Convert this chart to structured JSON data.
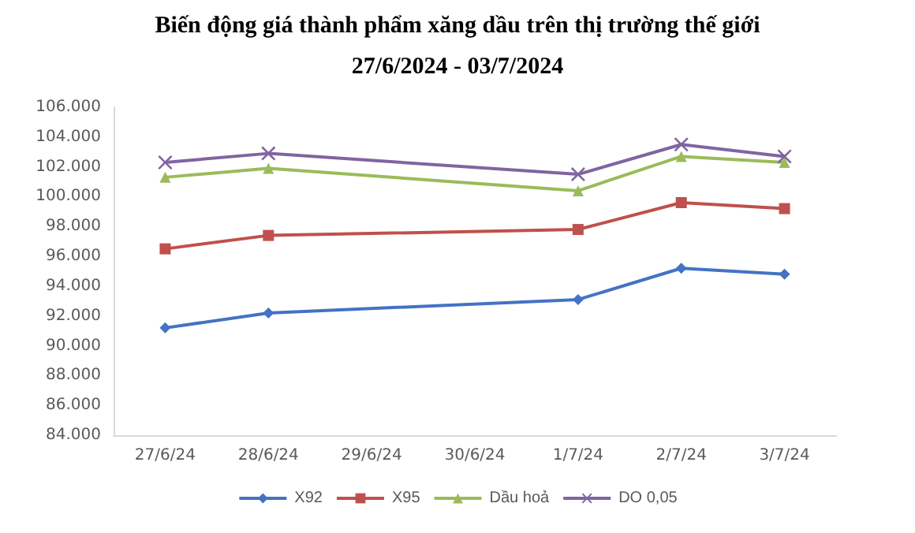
{
  "chart_data": {
    "type": "line",
    "title": "Biến động giá thành phẩm xăng dầu trên thị trường thế giới",
    "subtitle": "27/6/2024 - 03/7/2024",
    "categories": [
      "27/6/24",
      "28/6/24",
      "29/6/24",
      "30/6/24",
      "1/7/24",
      "2/7/24",
      "3/7/24"
    ],
    "series": [
      {
        "name": "X92",
        "color": "#4472c4",
        "marker": "diamond",
        "values": [
          91200,
          92200,
          null,
          null,
          93100,
          95200,
          94800
        ]
      },
      {
        "name": "X95",
        "color": "#c0504d",
        "marker": "square",
        "values": [
          96500,
          97400,
          null,
          null,
          97800,
          99600,
          99200
        ]
      },
      {
        "name": "Dầu hoả",
        "color": "#9bbb59",
        "marker": "triangle",
        "values": [
          101300,
          101900,
          null,
          null,
          100400,
          102700,
          102300
        ]
      },
      {
        "name": "DO 0,05",
        "color": "#8064a2",
        "marker": "cross",
        "values": [
          102300,
          102900,
          null,
          null,
          101500,
          103500,
          102700
        ]
      }
    ],
    "ylim": [
      84000,
      106000
    ],
    "yticks": [
      {
        "value": 84000,
        "label": "84.000"
      },
      {
        "value": 86000,
        "label": "86.000"
      },
      {
        "value": 88000,
        "label": "88.000"
      },
      {
        "value": 90000,
        "label": "90.000"
      },
      {
        "value": 92000,
        "label": "92.000"
      },
      {
        "value": 94000,
        "label": "94.000"
      },
      {
        "value": 96000,
        "label": "96.000"
      },
      {
        "value": 98000,
        "label": "98.000"
      },
      {
        "value": 100000,
        "label": "100.000"
      },
      {
        "value": 102000,
        "label": "102.000"
      },
      {
        "value": 104000,
        "label": "104.000"
      },
      {
        "value": 106000,
        "label": "106.000"
      }
    ],
    "legend": "bottom",
    "grid": false,
    "line_style": "solid"
  }
}
